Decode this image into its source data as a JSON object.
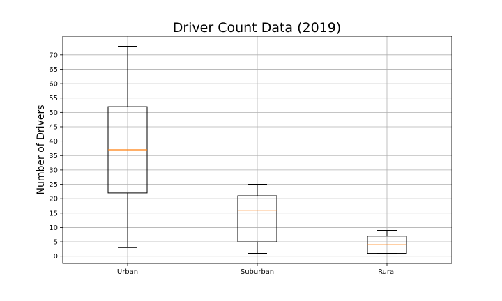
{
  "chart_data": {
    "type": "box",
    "title": "Driver Count Data (2019)",
    "xlabel": "",
    "ylabel": "Number of Drivers",
    "ylim": [
      -2.5,
      76.5
    ],
    "yticks": [
      0,
      5,
      10,
      15,
      20,
      25,
      30,
      35,
      40,
      45,
      50,
      55,
      60,
      65,
      70
    ],
    "grid": true,
    "categories": [
      "Urban",
      "Suburban",
      "Rural"
    ],
    "boxes": [
      {
        "category": "Urban",
        "min": 3,
        "q1": 22,
        "median": 37,
        "q3": 52,
        "max": 73
      },
      {
        "category": "Suburban",
        "min": 1,
        "q1": 5,
        "median": 16,
        "q3": 21,
        "max": 25
      },
      {
        "category": "Rural",
        "min": 1,
        "q1": 1,
        "median": 4,
        "q3": 7,
        "max": 9
      }
    ],
    "colors": {
      "box": "#000000",
      "median": "#ff7f0e",
      "grid": "#b0b0b0"
    }
  }
}
